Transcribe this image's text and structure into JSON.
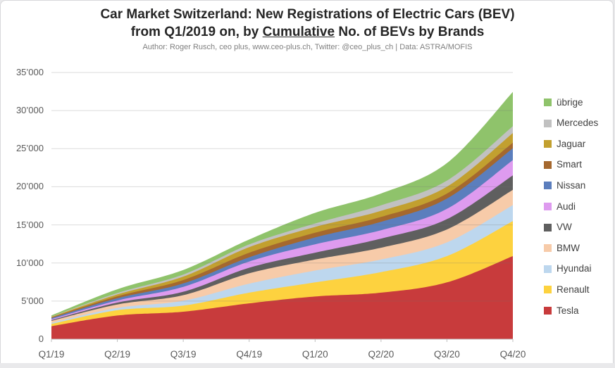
{
  "header": {
    "title_line1": "Car Market Switzerland: New Registrations of Electric Cars (BEV)",
    "title_line2_prefix": "from Q1/2019 on, by ",
    "title_line2_underlined": "Cumulative",
    "title_line2_suffix": " No. of BEVs by Brands",
    "subtitle": "Author: Roger Rusch, ceo plus, www.ceo-plus.ch, Twitter: @ceo_plus_ch  |  Data: ASTRA/MOFIS"
  },
  "chart_data": {
    "type": "area",
    "stacked": true,
    "smoothed": true,
    "x": [
      "Q1/19",
      "Q2/19",
      "Q3/19",
      "Q4/19",
      "Q1/20",
      "Q2/20",
      "Q3/20",
      "Q4/20"
    ],
    "series": [
      {
        "name": "Tesla",
        "color": "#c83b3c",
        "values": [
          1700,
          3100,
          3600,
          4700,
          5600,
          6100,
          7450,
          10900
        ]
      },
      {
        "name": "Renault",
        "color": "#fdd23f",
        "values": [
          300,
          700,
          800,
          1400,
          1850,
          2700,
          3450,
          4600
        ]
      },
      {
        "name": "Hyundai",
        "color": "#bdd7ee",
        "values": [
          150,
          300,
          640,
          1180,
          1550,
          1650,
          1800,
          2100
        ]
      },
      {
        "name": "BMW",
        "color": "#f7cba9",
        "values": [
          250,
          450,
          730,
          1360,
          1450,
          1550,
          1700,
          2000
        ]
      },
      {
        "name": "VW",
        "color": "#5f5f5f",
        "values": [
          100,
          250,
          450,
          730,
          900,
          1200,
          1350,
          1900
        ]
      },
      {
        "name": "Audi",
        "color": "#de9bef",
        "values": [
          120,
          270,
          640,
          820,
          1100,
          1100,
          1350,
          2000
        ]
      },
      {
        "name": "Nissan",
        "color": "#5b7ebd",
        "values": [
          150,
          300,
          450,
          550,
          900,
          1100,
          1350,
          1550
        ]
      },
      {
        "name": "Smart",
        "color": "#a5682e",
        "values": [
          80,
          250,
          450,
          600,
          620,
          640,
          660,
          730
        ]
      },
      {
        "name": "Jaguar",
        "color": "#c2a02f",
        "values": [
          80,
          250,
          450,
          730,
          760,
          800,
          900,
          1270
        ]
      },
      {
        "name": "Mercedes",
        "color": "#c1c1c1",
        "values": [
          40,
          180,
          270,
          360,
          450,
          730,
          800,
          900
        ]
      },
      {
        "name": "übrige",
        "color": "#8fc36b",
        "values": [
          150,
          500,
          600,
          650,
          1400,
          1550,
          2300,
          4500
        ]
      }
    ],
    "values_are": "cumulative registrations per brand (stacked)",
    "title": "Car Market Switzerland: New Registrations of Electric Cars (BEV) from Q1/2019 on, by Cumulative No. of BEVs by Brands",
    "xlabel": "",
    "ylabel": "",
    "ylim": [
      0,
      35000
    ],
    "ytick_interval": 5000,
    "ytick_labels": [
      "0",
      "5’000",
      "10’000",
      "15’000",
      "20’000",
      "25’000",
      "30’000",
      "35’000"
    ],
    "grid": true,
    "legend_position": "right",
    "legend_order_top_to_bottom": [
      "übrige",
      "Mercedes",
      "Jaguar",
      "Smart",
      "Nissan",
      "Audi",
      "VW",
      "BMW",
      "Hyundai",
      "Renault",
      "Tesla"
    ],
    "colors": {
      "grid": "#e0e0e0",
      "axis": "#bfbfbf",
      "title_text": "#262626",
      "subtitle_text": "#7f7f7f",
      "tick_text": "#595959",
      "legend_text": "#3f3f3f"
    }
  }
}
